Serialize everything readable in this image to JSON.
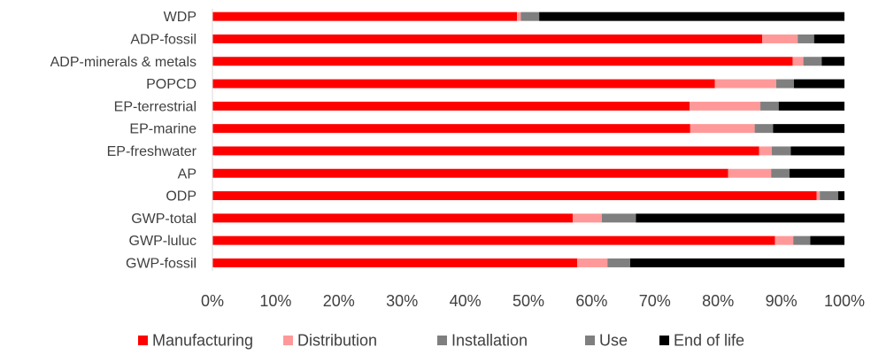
{
  "chart_data": {
    "type": "bar",
    "orientation": "horizontal",
    "stacked": "percent",
    "categories": [
      "WDP",
      "ADP-fossil",
      "ADP-minerals & metals",
      "POPCD",
      "EP-terrestrial",
      "EP-marine",
      "EP-freshwater",
      "AP",
      "ODP",
      "GWP-total",
      "GWP-luluc",
      "GWP-fossil"
    ],
    "series": [
      {
        "name": "Manufacturing",
        "color": "#ff0000",
        "values": [
          48.2,
          87.0,
          91.8,
          79.5,
          75.5,
          75.6,
          86.5,
          81.6,
          95.6,
          57.0,
          89.0,
          57.7
        ]
      },
      {
        "name": "Distribution",
        "color": "#ff9999",
        "values": [
          0.6,
          5.6,
          1.7,
          9.7,
          11.2,
          10.2,
          2.0,
          6.8,
          0.5,
          4.6,
          2.9,
          4.8
        ]
      },
      {
        "name": "Installation",
        "color": "#7f7f7f",
        "values": [
          2.9,
          2.6,
          2.9,
          2.8,
          2.9,
          2.9,
          3.0,
          2.9,
          2.9,
          5.4,
          2.7,
          3.6
        ]
      },
      {
        "name": "Use",
        "color": "#7f7f7f",
        "values": [
          0.0,
          0.0,
          0.0,
          0.0,
          0.0,
          0.0,
          0.0,
          0.0,
          0.0,
          0.0,
          0.0,
          0.0
        ]
      },
      {
        "name": "End of life",
        "color": "#000000",
        "values": [
          48.3,
          4.8,
          3.6,
          8.0,
          10.4,
          11.3,
          8.5,
          8.7,
          1.0,
          33.0,
          5.4,
          33.9
        ]
      }
    ],
    "xlim": [
      0,
      100
    ],
    "xticks": [
      "0%",
      "10%",
      "20%",
      "30%",
      "40%",
      "50%",
      "60%",
      "70%",
      "80%",
      "90%",
      "100%"
    ],
    "grid": false,
    "legend_position": "bottom"
  }
}
